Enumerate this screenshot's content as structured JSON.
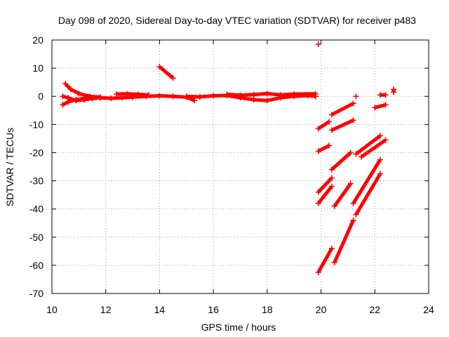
{
  "chart_data": {
    "type": "scatter",
    "title": "Day 098 of 2020, Sidereal Day-to-day VTEC variation (SDTVAR) for receiver p483",
    "xlabel": "GPS time / hours",
    "ylabel": "SDTVAR / TECUs",
    "xlim": [
      10,
      24
    ],
    "ylim": [
      -70,
      20
    ],
    "xticks": [
      "10",
      "12",
      "14",
      "16",
      "18",
      "20",
      "22",
      "24"
    ],
    "yticks": [
      "20",
      "10",
      "0",
      "-10",
      "-20",
      "-30",
      "-40",
      "-50",
      "-60",
      "-70"
    ],
    "grid": true,
    "legend": "none",
    "marker": "plus",
    "color": "#ff0000",
    "series": [
      {
        "x": [
          10.4,
          10.6,
          10.9,
          11.2,
          11.5,
          11.8
        ],
        "y": [
          0.0,
          -0.5,
          -1.5,
          -1.2,
          -0.8,
          -0.5
        ]
      },
      {
        "x": [
          10.5,
          10.7,
          11.0,
          11.4,
          11.8
        ],
        "y": [
          4.5,
          2.5,
          1.0,
          0.0,
          -0.3
        ]
      },
      {
        "x": [
          10.4,
          10.6,
          10.9,
          11.3,
          11.8
        ],
        "y": [
          -3.0,
          -2.0,
          -1.2,
          -0.6,
          -0.4
        ]
      },
      {
        "x": [
          11.8,
          12.2,
          12.6,
          13.0,
          13.5,
          14.0,
          14.5,
          15.0,
          15.3
        ],
        "y": [
          -0.5,
          -0.7,
          -0.5,
          -0.3,
          0.0,
          0.2,
          0.0,
          -0.3,
          -1.5
        ]
      },
      {
        "x": [
          12.4,
          12.8,
          13.2,
          13.6
        ],
        "y": [
          0.8,
          0.9,
          0.7,
          0.5
        ]
      },
      {
        "x": [
          14.0,
          14.5
        ],
        "y": [
          10.5,
          6.5
        ]
      },
      {
        "x": [
          15.0,
          15.5,
          16.0,
          16.5,
          17.0,
          17.5,
          18.0,
          18.5,
          19.0,
          19.5,
          19.8
        ],
        "y": [
          0.0,
          -0.2,
          0.2,
          0.3,
          -0.5,
          -1.2,
          -1.5,
          -0.5,
          0.0,
          0.3,
          0.0
        ]
      },
      {
        "x": [
          16.5,
          17.0,
          17.5,
          18.0,
          18.5,
          19.0,
          19.8
        ],
        "y": [
          0.7,
          0.4,
          0.6,
          1.0,
          0.5,
          0.8,
          0.9
        ]
      },
      {
        "x": [
          19.9
        ],
        "y": [
          18.5
        ]
      },
      {
        "x": [
          19.9,
          20.3
        ],
        "y": [
          -11.5,
          -9.0
        ]
      },
      {
        "x": [
          20.4,
          21.2
        ],
        "y": [
          -6.5,
          -2.5
        ]
      },
      {
        "x": [
          20.4,
          21.2
        ],
        "y": [
          -12.0,
          -8.5
        ]
      },
      {
        "x": [
          19.9,
          20.3
        ],
        "y": [
          -19.5,
          -17.5
        ]
      },
      {
        "x": [
          20.4,
          21.1
        ],
        "y": [
          -26.0,
          -20.0
        ]
      },
      {
        "x": [
          19.9,
          20.4
        ],
        "y": [
          -34.0,
          -29.0
        ]
      },
      {
        "x": [
          19.9,
          20.4
        ],
        "y": [
          -38.0,
          -32.0
        ]
      },
      {
        "x": [
          20.5,
          21.1
        ],
        "y": [
          -39.0,
          -31.0
        ]
      },
      {
        "x": [
          19.9,
          20.4
        ],
        "y": [
          -62.5,
          -54.0
        ]
      },
      {
        "x": [
          20.5,
          21.2
        ],
        "y": [
          -59.0,
          -44.0
        ]
      },
      {
        "x": [
          21.2,
          22.2
        ],
        "y": [
          -38.0,
          -22.5
        ]
      },
      {
        "x": [
          21.3,
          22.2
        ],
        "y": [
          -42.0,
          -27.5
        ]
      },
      {
        "x": [
          21.5,
          22.4
        ],
        "y": [
          -21.5,
          -15.5
        ]
      },
      {
        "x": [
          21.3,
          22.2
        ],
        "y": [
          -20.5,
          -14.0
        ]
      },
      {
        "x": [
          21.3
        ],
        "y": [
          0.0
        ]
      },
      {
        "x": [
          22.0,
          22.4
        ],
        "y": [
          -4.0,
          -3.0
        ]
      },
      {
        "x": [
          22.2,
          22.4
        ],
        "y": [
          0.5,
          0.5
        ]
      },
      {
        "x": [
          22.7,
          22.7
        ],
        "y": [
          1.5,
          2.5
        ]
      }
    ]
  }
}
